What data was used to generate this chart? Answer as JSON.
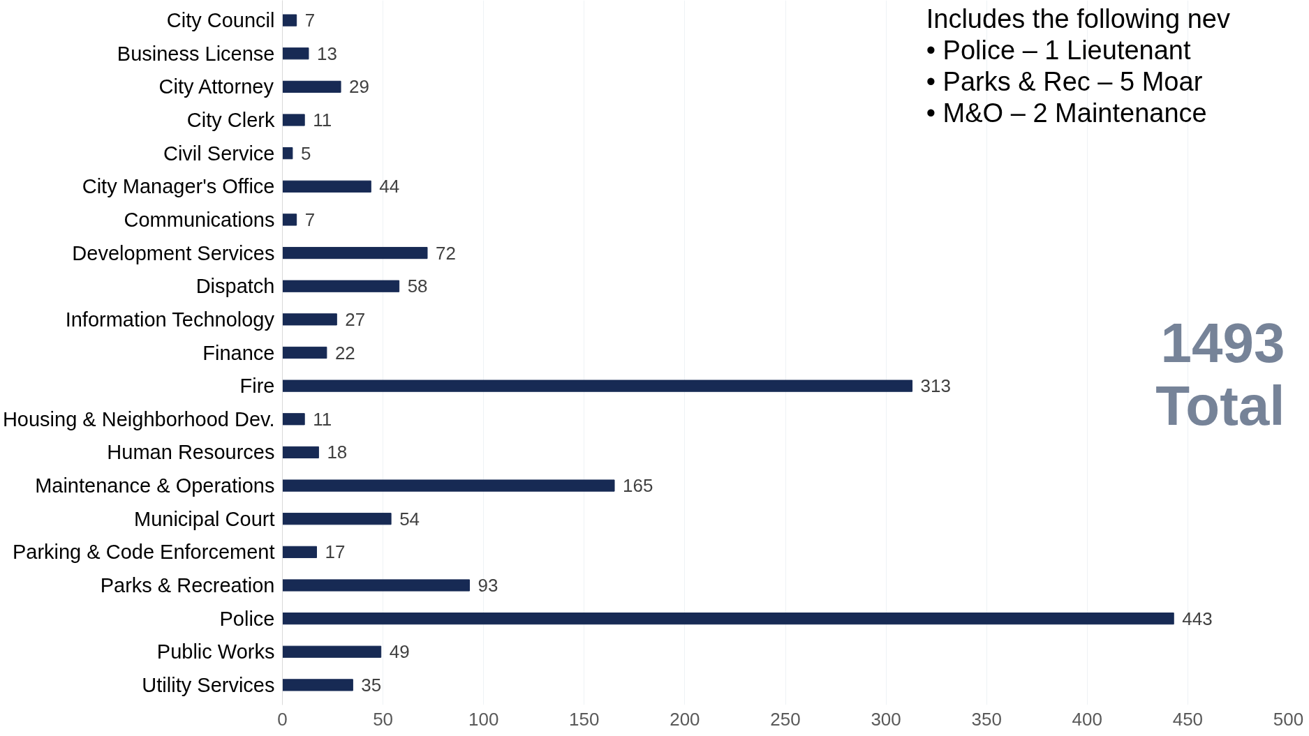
{
  "chart_data": {
    "type": "bar",
    "orientation": "horizontal",
    "categories": [
      "City Council",
      "Business License",
      "City Attorney",
      "City Clerk",
      "Civil Service",
      "City Manager's Office",
      "Communications",
      "Development Services",
      "Dispatch",
      "Information Technology",
      "Finance",
      "Fire",
      "Housing & Neighborhood Dev.",
      "Human Resources",
      "Maintenance & Operations",
      "Municipal Court",
      "Parking & Code Enforcement",
      "Parks & Recreation",
      "Police",
      "Public Works",
      "Utility Services"
    ],
    "values": [
      7,
      13,
      29,
      11,
      5,
      44,
      7,
      72,
      58,
      27,
      22,
      313,
      11,
      18,
      165,
      54,
      17,
      93,
      443,
      49,
      35
    ],
    "color": "#172a54",
    "data_labels": true,
    "grid": "x",
    "xlim": [
      0,
      500
    ],
    "xticks": [
      0,
      50,
      100,
      150,
      200,
      250,
      300,
      350,
      400,
      450,
      500
    ],
    "annotations": [
      "Includes the following nev",
      "•     Police – 1 Lieutenant",
      "•     Parks & Rec – 5 Moar",
      "•     M&O – 2 Maintenance",
      "1493",
      "Total"
    ]
  }
}
